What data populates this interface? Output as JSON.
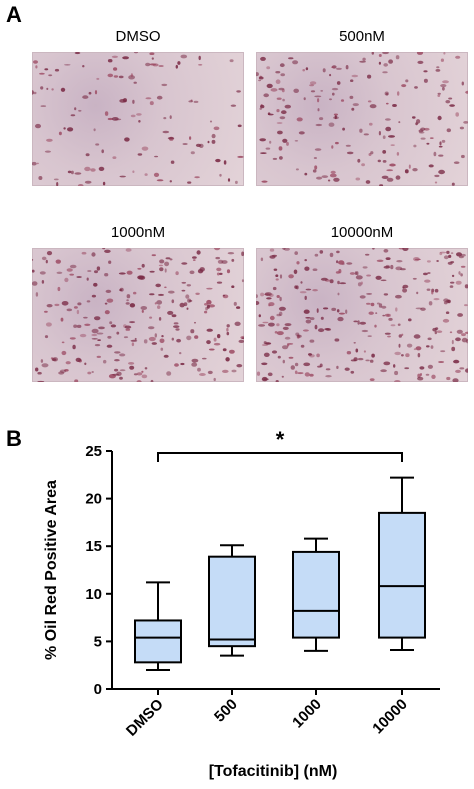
{
  "panel_a": {
    "letter": "A",
    "images": [
      {
        "label": "DMSO",
        "density": 0.25
      },
      {
        "label": "500nM",
        "density": 0.5
      },
      {
        "label": "1000nM",
        "density": 0.7
      },
      {
        "label": "10000nM",
        "density": 0.85
      }
    ]
  },
  "panel_b": {
    "letter": "B",
    "significance_label": "*"
  },
  "chart_data": {
    "type": "box",
    "categories": [
      "DMSO",
      "500",
      "1000",
      "10000"
    ],
    "xlabel": "[Tofacitinib] (nM)",
    "ylabel": "% Oil Red Positive Area",
    "ylim": [
      0,
      25
    ],
    "yticks": [
      0,
      5,
      10,
      15,
      20,
      25
    ],
    "box_color": "#c5dcf7",
    "boxes": [
      {
        "min": 2.0,
        "q1": 2.8,
        "median": 5.4,
        "q3": 7.2,
        "max": 11.2
      },
      {
        "min": 3.5,
        "q1": 4.5,
        "median": 5.2,
        "q3": 13.9,
        "max": 15.1
      },
      {
        "min": 4.0,
        "q1": 5.4,
        "median": 8.2,
        "q3": 14.4,
        "max": 15.8
      },
      {
        "min": 4.1,
        "q1": 5.4,
        "median": 10.8,
        "q3": 18.5,
        "max": 22.2
      }
    ],
    "significance": {
      "from": "DMSO",
      "to": "10000",
      "label": "*"
    }
  }
}
